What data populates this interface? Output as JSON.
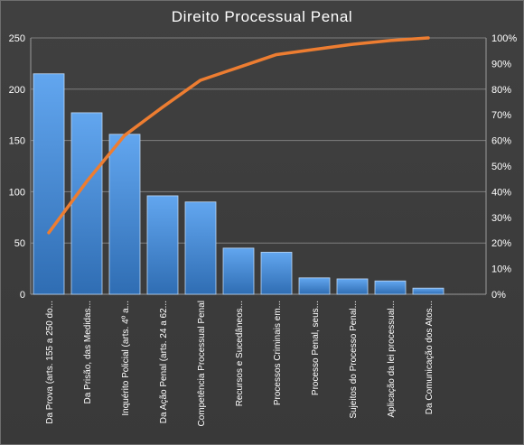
{
  "chart_data": {
    "type": "bar",
    "title": "Direito Processual Penal",
    "categories": [
      "Da Prova (arts. 155 a 250 do...",
      "Da Prisão, das Medidas...",
      "Inquérito Policial (arts. 4º a...",
      "Da Ação Penal (arts. 24 a 62...",
      "Competência Processual Penal",
      "Recursos e Sucedâneos...",
      "Processos Criminais em...",
      "Processo Penal, seus...",
      "Sujeitos do Processo Penal...",
      "Aplicação da lei processual...",
      "Da Comunicação dos Atos..."
    ],
    "series": [
      {
        "type": "bar",
        "axis": "left",
        "color": "#4a90d9",
        "values": [
          215,
          177,
          156,
          96,
          90,
          45,
          41,
          16,
          15,
          13,
          6
        ]
      },
      {
        "type": "line",
        "axis": "right",
        "color": "#ed7d31",
        "values": [
          24,
          44,
          62,
          73,
          83.5,
          88.5,
          93.5,
          95.5,
          97.5,
          99,
          100
        ]
      }
    ],
    "ylim_left": [
      0,
      250
    ],
    "yticks_left": [
      "0",
      "50",
      "100",
      "150",
      "200",
      "250"
    ],
    "ylim_right": [
      0,
      100
    ],
    "yticks_right": [
      "0%",
      "10%",
      "20%",
      "30%",
      "40%",
      "50%",
      "60%",
      "70%",
      "80%",
      "90%",
      "100%"
    ],
    "grid": true,
    "legend": "none"
  }
}
